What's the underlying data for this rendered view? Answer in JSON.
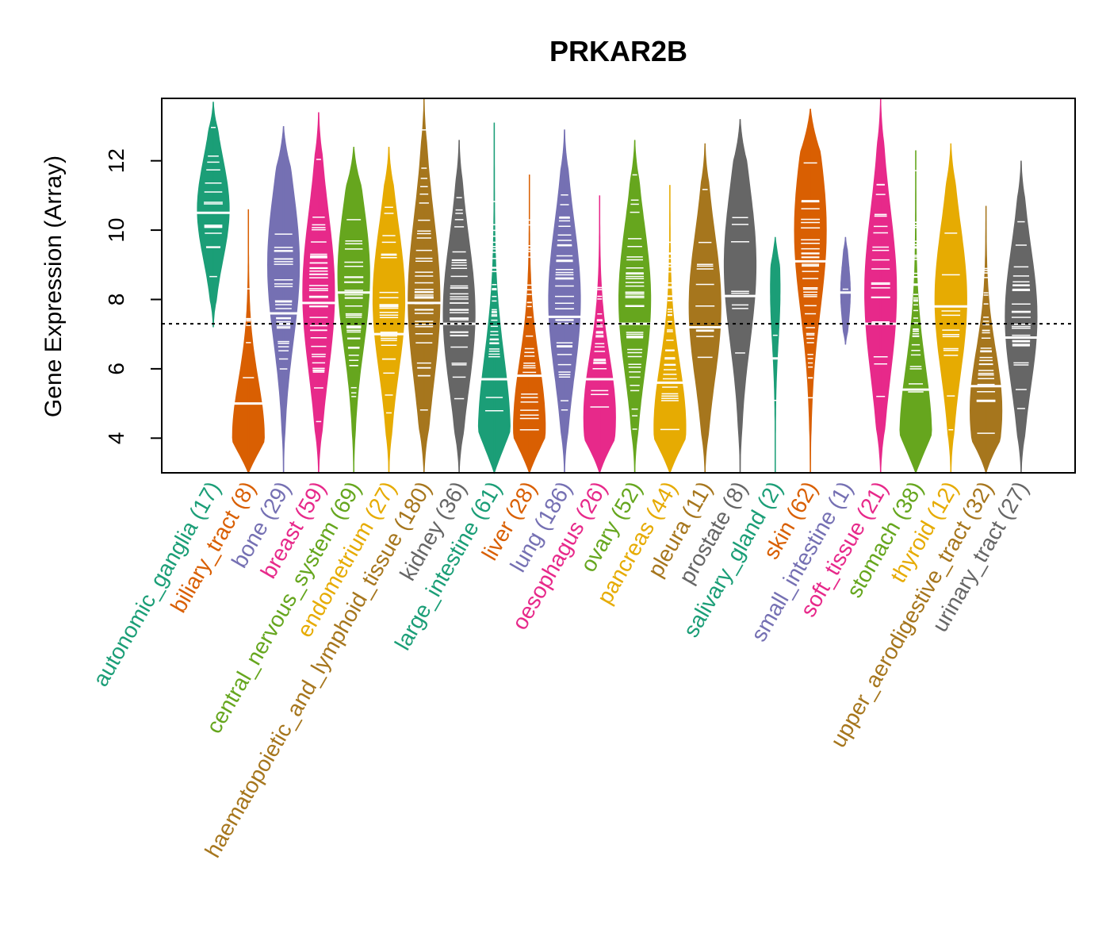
{
  "chart_data": {
    "type": "violin",
    "title": "PRKAR2B",
    "ylabel": "Gene Expression (Array)",
    "xlabel": "",
    "ylim": [
      3,
      13.8
    ],
    "yticks": [
      4,
      6,
      8,
      10,
      12
    ],
    "reference_line": 7.3,
    "categories": [
      {
        "name": "autonomic_ganglia",
        "n": 17,
        "color": "#1b9e77",
        "min": 7.2,
        "max": 13.7,
        "median": 10.5,
        "mode": 10.6
      },
      {
        "name": "biliary_tract",
        "n": 8,
        "color": "#d95f02",
        "min": 3.0,
        "max": 10.6,
        "median": 5.0,
        "mode": 4.0
      },
      {
        "name": "bone",
        "n": 29,
        "color": "#7570b3",
        "min": 3.0,
        "max": 13.0,
        "median": 7.6,
        "mode": 9.0
      },
      {
        "name": "breast",
        "n": 59,
        "color": "#e7298a",
        "min": 3.0,
        "max": 13.4,
        "median": 7.9,
        "mode": 8.2
      },
      {
        "name": "central_nervous_system",
        "n": 69,
        "color": "#66a61e",
        "min": 3.0,
        "max": 12.4,
        "median": 8.2,
        "mode": 8.7
      },
      {
        "name": "endometrium",
        "n": 27,
        "color": "#e6ab02",
        "min": 3.0,
        "max": 12.4,
        "median": 7.0,
        "mode": 8.0
      },
      {
        "name": "haematopoietic_and_lymphoid_tissue",
        "n": 180,
        "color": "#a6761d",
        "min": 3.0,
        "max": 13.8,
        "median": 7.9,
        "mode": 8.0
      },
      {
        "name": "kidney",
        "n": 36,
        "color": "#666666",
        "min": 3.0,
        "max": 12.6,
        "median": 7.3,
        "mode": 7.6
      },
      {
        "name": "large_intestine",
        "n": 61,
        "color": "#1b9e77",
        "min": 3.0,
        "max": 13.1,
        "median": 5.7,
        "mode": 4.1
      },
      {
        "name": "liver",
        "n": 28,
        "color": "#d95f02",
        "min": 3.0,
        "max": 11.6,
        "median": 5.8,
        "mode": 4.3
      },
      {
        "name": "lung",
        "n": 186,
        "color": "#7570b3",
        "min": 3.0,
        "max": 12.9,
        "median": 7.5,
        "mode": 8.0
      },
      {
        "name": "oesophagus",
        "n": 26,
        "color": "#e7298a",
        "min": 3.0,
        "max": 11.0,
        "median": 5.7,
        "mode": 4.6
      },
      {
        "name": "ovary",
        "n": 52,
        "color": "#66a61e",
        "min": 3.0,
        "max": 12.6,
        "median": 7.3,
        "mode": 8.0
      },
      {
        "name": "pancreas",
        "n": 44,
        "color": "#e6ab02",
        "min": 3.0,
        "max": 11.3,
        "median": 5.6,
        "mode": 4.3
      },
      {
        "name": "pleura",
        "n": 11,
        "color": "#a6761d",
        "min": 3.0,
        "max": 12.5,
        "median": 7.2,
        "mode": 7.8
      },
      {
        "name": "prostate",
        "n": 8,
        "color": "#666666",
        "min": 3.0,
        "max": 13.2,
        "median": 8.1,
        "mode": 9.0
      },
      {
        "name": "salivary_gland",
        "n": 2,
        "color": "#1b9e77",
        "min": 3.0,
        "max": 9.8,
        "median": 6.3,
        "mode": 8.3
      },
      {
        "name": "skin",
        "n": 62,
        "color": "#d95f02",
        "min": 3.0,
        "max": 13.5,
        "median": 9.1,
        "mode": 10.0
      },
      {
        "name": "small_intestine",
        "n": 1,
        "color": "#7570b3",
        "min": 6.7,
        "max": 9.8,
        "median": 8.2,
        "mode": 8.2
      },
      {
        "name": "soft_tissue",
        "n": 21,
        "color": "#e7298a",
        "min": 3.0,
        "max": 13.8,
        "median": 7.3,
        "mode": 8.2
      },
      {
        "name": "stomach",
        "n": 38,
        "color": "#66a61e",
        "min": 3.0,
        "max": 12.3,
        "median": 5.4,
        "mode": 4.0
      },
      {
        "name": "thyroid",
        "n": 12,
        "color": "#e6ab02",
        "min": 3.0,
        "max": 12.5,
        "median": 7.8,
        "mode": 8.0
      },
      {
        "name": "upper_aerodigestive_tract",
        "n": 32,
        "color": "#a6761d",
        "min": 3.0,
        "max": 10.7,
        "median": 5.5,
        "mode": 4.8
      },
      {
        "name": "urinary_tract",
        "n": 27,
        "color": "#666666",
        "min": 3.0,
        "max": 12.0,
        "median": 6.9,
        "mode": 7.5
      }
    ]
  }
}
